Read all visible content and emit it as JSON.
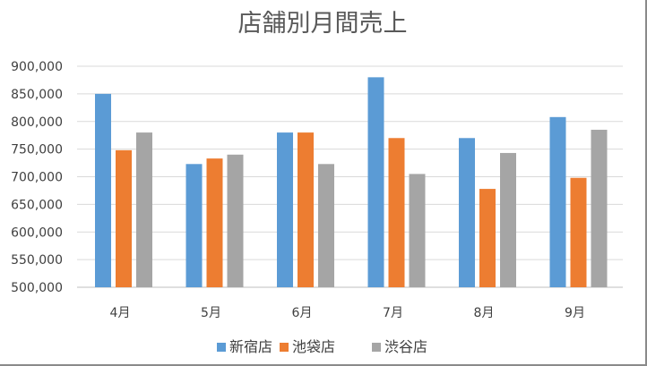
{
  "chart_data": {
    "type": "bar",
    "title": "店舗別月間売上",
    "xlabel": "",
    "ylabel": "",
    "categories": [
      "4月",
      "5月",
      "6月",
      "7月",
      "8月",
      "9月"
    ],
    "series": [
      {
        "name": "新宿店",
        "color": "#5B9BD5",
        "values": [
          850000,
          723000,
          780000,
          880000,
          770000,
          808000
        ]
      },
      {
        "name": "池袋店",
        "color": "#ED7D31",
        "values": [
          748000,
          733000,
          780000,
          770000,
          678000,
          698000
        ]
      },
      {
        "name": "渋谷店",
        "color": "#A5A5A5",
        "values": [
          780000,
          740000,
          723000,
          705000,
          743000,
          785000
        ]
      }
    ],
    "ylim": [
      500000,
      900000
    ],
    "yticks": [
      "500,000",
      "550,000",
      "600,000",
      "650,000",
      "700,000",
      "750,000",
      "800,000",
      "850,000",
      "900,000"
    ],
    "grid": true,
    "legend_position": "bottom"
  }
}
